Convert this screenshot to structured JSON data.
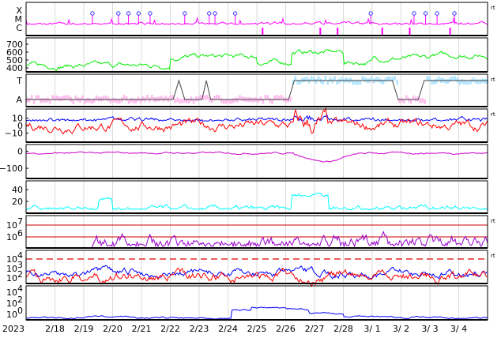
{
  "chart_data": {
    "type": "line",
    "year_label": "2023",
    "x_ticks": [
      "2/18",
      "2/19",
      "2/20",
      "2/21",
      "2/22",
      "2/23",
      "2/24",
      "2/25",
      "2/26",
      "2/27",
      "2/28",
      "3/ 1",
      "3/ 2",
      "3/ 3",
      "3/ 4"
    ],
    "x_range": [
      "2023-02-17",
      "2023-03-05"
    ],
    "panels": [
      {
        "id": "xray_class",
        "type": "scatter",
        "ticks": [
          "X",
          "M",
          "C"
        ],
        "side_mark": "rt",
        "colors": {
          "line": "#ff00ff",
          "marker": "#3333ff"
        },
        "flare_days": [
          2.3,
          3.2,
          3.55,
          3.9,
          4.3,
          5.5,
          6.35,
          6.55,
          7.25,
          11.95,
          13.45,
          13.85,
          14.25,
          14.85
        ]
      },
      {
        "id": "solar_wind_speed",
        "type": "line",
        "ticks": [
          "700",
          "600",
          "500",
          "400"
        ],
        "ylim": [
          350,
          780
        ],
        "colors": {
          "line": "#00ee00"
        }
      },
      {
        "id": "imf_polarity",
        "type": "line",
        "ticks": [
          "T",
          "A"
        ],
        "side_mark": "rt",
        "colors": {
          "toward": "#aee4ff",
          "away": "#ffbbee",
          "line": "#444444"
        }
      },
      {
        "id": "imf_bz",
        "type": "line",
        "ticks": [
          "10",
          "0",
          "−10"
        ],
        "ylim": [
          -22,
          22
        ],
        "side_mark": "rt",
        "colors": {
          "bt": "#0000ff",
          "bz": "#ff0000"
        }
      },
      {
        "id": "dst",
        "type": "line",
        "ticks": [
          "0",
          "−100"
        ],
        "ylim": [
          -160,
          40
        ],
        "colors": {
          "line": "#cc00cc"
        }
      },
      {
        "id": "proton_density",
        "type": "line",
        "ticks": [
          "40",
          "20"
        ],
        "ylim": [
          0,
          55
        ],
        "colors": {
          "line": "#00ffff"
        }
      },
      {
        "id": "kp_like",
        "type": "line",
        "ticks": [
          "10^7",
          "10^6"
        ],
        "side_mark": "rt",
        "colors": {
          "line": "#9900cc",
          "ref": "#cc0000"
        }
      },
      {
        "id": "electron_flux",
        "type": "line",
        "ticks": [
          "10^4",
          "10^3",
          "10^2"
        ],
        "side_mark": "rt",
        "colors": {
          "a": "#0000ff",
          "b": "#ff0000",
          "threshold": "#dd0000"
        }
      },
      {
        "id": "proton_flux",
        "type": "line",
        "ticks": [
          "10^4",
          "10^2",
          "10^0"
        ],
        "colors": {
          "line": "#0000ff"
        }
      }
    ]
  }
}
